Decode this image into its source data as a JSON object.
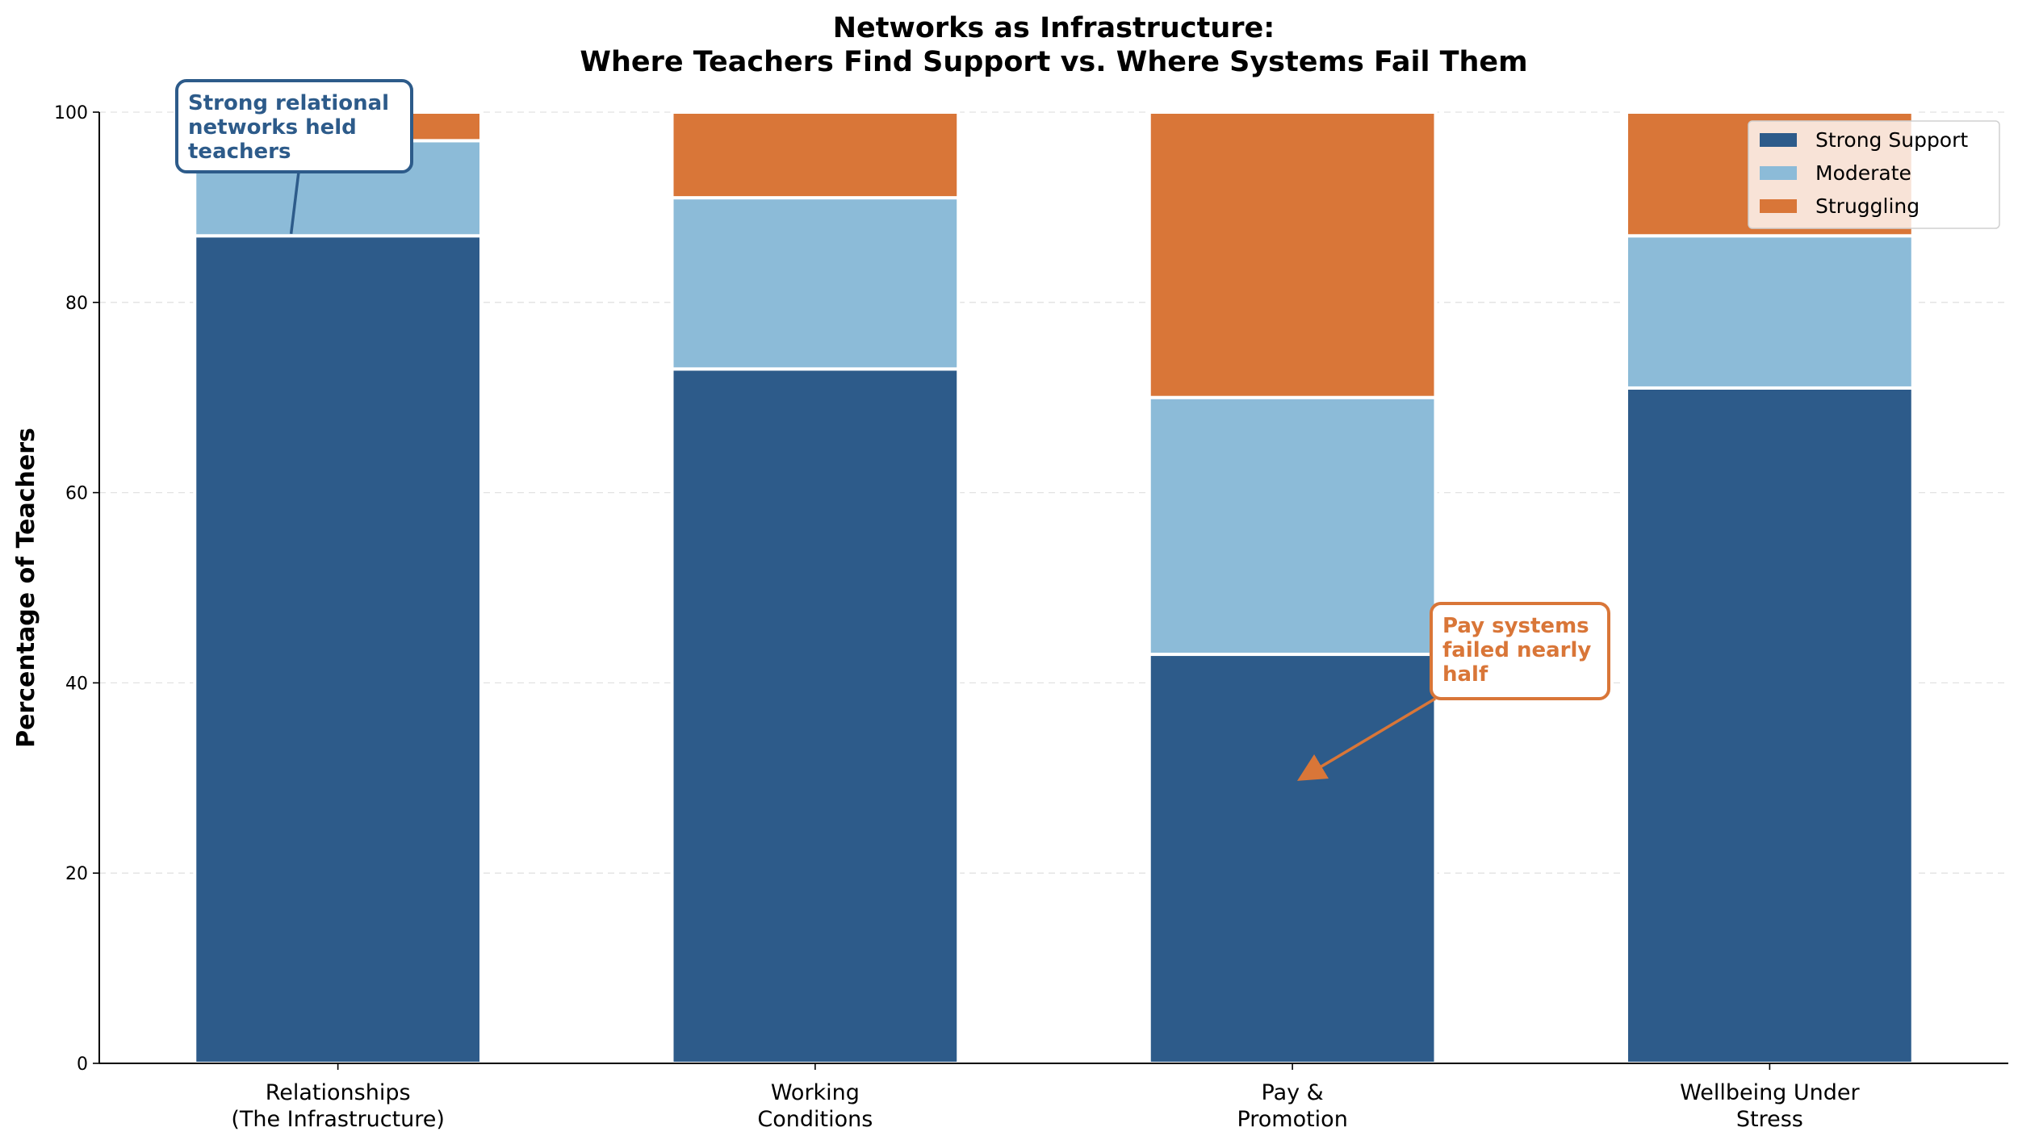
{
  "chart_data": {
    "type": "bar",
    "stacked": true,
    "title": [
      "Networks as Infrastructure:",
      "Where Teachers Find Support vs. Where Systems Fail Them"
    ],
    "ylabel": "Percentage of Teachers",
    "xlabel": "",
    "ylim": [
      0,
      100
    ],
    "yticks": [
      0,
      20,
      40,
      60,
      80,
      100
    ],
    "grid": "y-dashed",
    "categories": [
      [
        "Relationships",
        "(The Infrastructure)"
      ],
      [
        "Working",
        "Conditions"
      ],
      [
        "Pay &",
        "Promotion"
      ],
      [
        "Wellbeing Under",
        "Stress"
      ]
    ],
    "series": [
      {
        "name": "Strong Support",
        "color": "#2d5b8a",
        "values": [
          87,
          73,
          43,
          71
        ]
      },
      {
        "name": "Moderate",
        "color": "#8cbbd8",
        "values": [
          10,
          18,
          27,
          16
        ]
      },
      {
        "name": "Struggling",
        "color": "#d97638",
        "values": [
          3,
          9,
          30,
          13
        ]
      }
    ],
    "legend": "top-right",
    "annotations": [
      {
        "lines": [
          "Strong relational",
          "networks held",
          "teachers"
        ],
        "color": "#2d5b8a",
        "category_index": 0,
        "target_value": 85,
        "text_value": 99,
        "arrow": "line"
      },
      {
        "lines": [
          "Pay systems",
          "failed nearly",
          "half"
        ],
        "color": "#d97638",
        "category_index": 2,
        "target_value": 30,
        "text_value": 46,
        "arrow": "arrow"
      }
    ]
  }
}
